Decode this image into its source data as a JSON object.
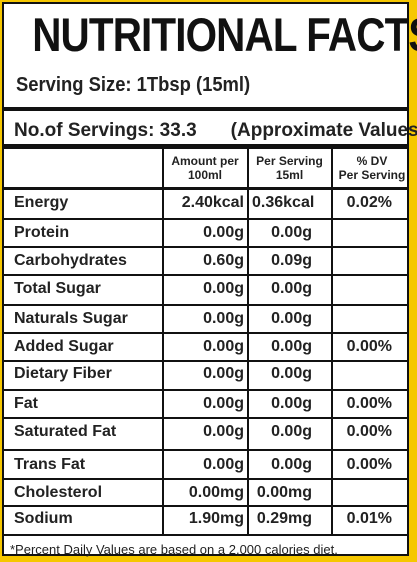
{
  "title": "NUTRITIONAL FACTS",
  "serving_size": "Serving Size: 1Tbsp (15ml)",
  "servings": "No.of Servings: 33.3",
  "approx": "(Approximate Values)",
  "columns": {
    "c1": [
      "Amount per",
      "100ml"
    ],
    "c2": [
      "Per Serving",
      "15ml"
    ],
    "c3": [
      "% DV",
      "Per Serving"
    ]
  },
  "rows": [
    {
      "name": "Energy",
      "per100": "2.40kcal",
      "serving": "0.36kcal",
      "dv": "0.02%"
    },
    {
      "name": "Protein",
      "per100": "0.00g",
      "serving": "0.00g",
      "dv": ""
    },
    {
      "name": "Carbohydrates",
      "per100": "0.60g",
      "serving": "0.09g",
      "dv": ""
    },
    {
      "name": "Total Sugar",
      "per100": "0.00g",
      "serving": "0.00g",
      "dv": ""
    },
    {
      "name": "Naturals Sugar",
      "per100": "0.00g",
      "serving": "0.00g",
      "dv": ""
    },
    {
      "name": "Added Sugar",
      "per100": "0.00g",
      "serving": "0.00g",
      "dv": "0.00%"
    },
    {
      "name": "Dietary Fiber",
      "per100": "0.00g",
      "serving": "0.00g",
      "dv": ""
    },
    {
      "name": "Fat",
      "per100": "0.00g",
      "serving": "0.00g",
      "dv": "0.00%"
    },
    {
      "name": "Saturated Fat",
      "per100": "0.00g",
      "serving": "0.00g",
      "dv": "0.00%"
    },
    {
      "name": "Trans Fat",
      "per100": "0.00g",
      "serving": "0.00g",
      "dv": "0.00%"
    },
    {
      "name": "Cholesterol",
      "per100": "0.00mg",
      "serving": "0.00mg",
      "dv": ""
    },
    {
      "name": "Sodium",
      "per100": "1.90mg",
      "serving": "0.29mg",
      "dv": "0.01%"
    }
  ],
  "footnote": "*Percent Daily Values are based on a 2,000 calories diet.",
  "colors": {
    "background": "#f6c700",
    "ink": "#111111"
  }
}
